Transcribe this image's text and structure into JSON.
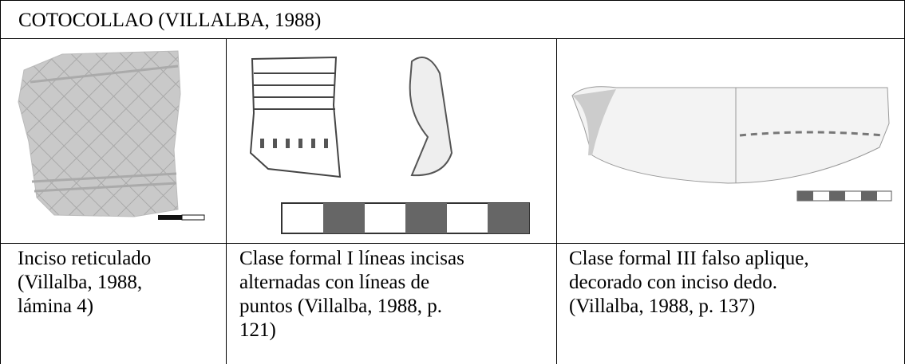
{
  "table": {
    "title": "COTOCOLLAO (VILLALBA, 1988)",
    "captions": [
      [
        "Inciso reticulado",
        "(Villalba, 1988,",
        "lámina 4)"
      ],
      [
        "Clase formal I líneas incisas",
        "alternadas con líneas de",
        "puntos (Villalba, 1988, p.",
        "121)"
      ],
      [
        "Clase formal III falso aplique,",
        "decorado con inciso dedo.",
        "(Villalba, 1988, p. 137)"
      ]
    ]
  }
}
